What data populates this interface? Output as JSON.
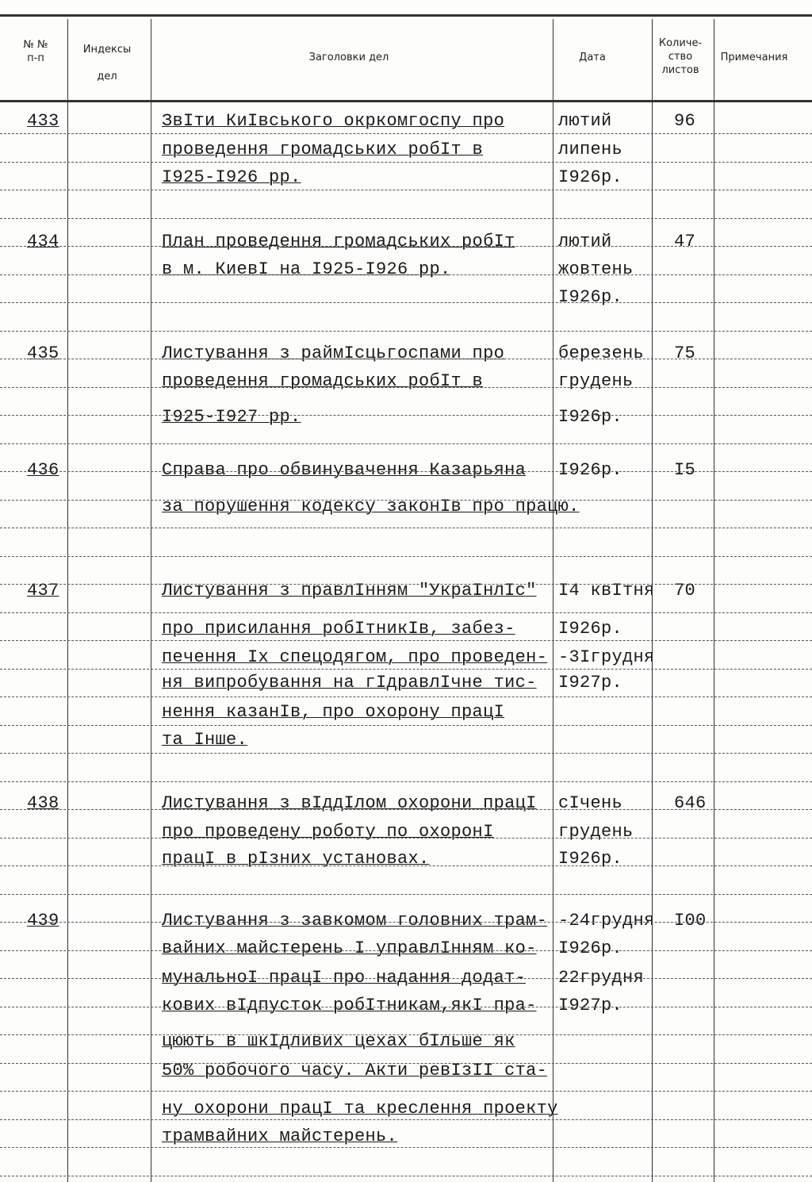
{
  "header": {
    "number": "№ №\nп-п",
    "index": "Индексы\nдел",
    "title": "Заголовки дел",
    "date": "Дата",
    "count": "Количе-\nство\nлистов",
    "notes": "Примечания"
  },
  "entries": [
    {
      "number": "433",
      "title": [
        "ЗвІти КиІвського окркомгоспу про",
        "проведення громадських робІт  в",
        "І925-І926 рр."
      ],
      "date": [
        "лютий",
        "липень",
        "І926р."
      ],
      "count": "96"
    },
    {
      "number": "434",
      "title": [
        "План проведення громадських робІт",
        "в м. КиевІ на І925-І926 рр."
      ],
      "date": [
        "лютий",
        "жовтень",
        "І926р."
      ],
      "count": "47"
    },
    {
      "number": "435",
      "title": [
        "Листування з раймІсцьгоспами  про",
        "проведення громадських робІт  в",
        "І925-І927 рр."
      ],
      "date": [
        "березень",
        "грудень",
        "І926р."
      ],
      "count": "75"
    },
    {
      "number": "436",
      "title": [
        "Справа про обвинувачення Казарьяна",
        "за порушення кодексу законІв про працю."
      ],
      "date": [
        "І926р."
      ],
      "count": "І5"
    },
    {
      "number": "437",
      "title": [
        "Листування з правлІнням \"УкраІнлІс\"",
        "про присилання робІтникІв, забез-",
        "печення Іх спецодягом, про проведен-",
        "ня випробування на гІдравлІчне тис-",
        "нення казанІв, про охорону працІ",
        "та Інше."
      ],
      "date": [
        "І4 квІтня",
        "І926р.",
        "-3Ігрудня",
        "І927р."
      ],
      "count": "70"
    },
    {
      "number": "438",
      "title": [
        "Листування з вІддІлом охорони працІ",
        "про проведену роботу по охоронІ",
        "працІ в рІзних установах."
      ],
      "date": [
        "сІчень",
        "грудень",
        "І926р."
      ],
      "count": "646"
    },
    {
      "number": "439",
      "title": [
        "Листування з завкомом головних трам-",
        "вайних майстерень І управлІнням ко-",
        "мунальноІ працІ про надання додат-",
        "кових вІдпусток робІтникам,якІ пра-",
        "цюють в шкІдливих цехах бІльше як",
        "50% робочого часу. Акти ревІзІІ ста-",
        "ну охорони працІ та креслення проекту",
        "трамвайних майстерень."
      ],
      "date": [
        "-24грудня",
        "І926р.",
        "22грудня",
        "І927р."
      ],
      "count": "І00"
    }
  ]
}
